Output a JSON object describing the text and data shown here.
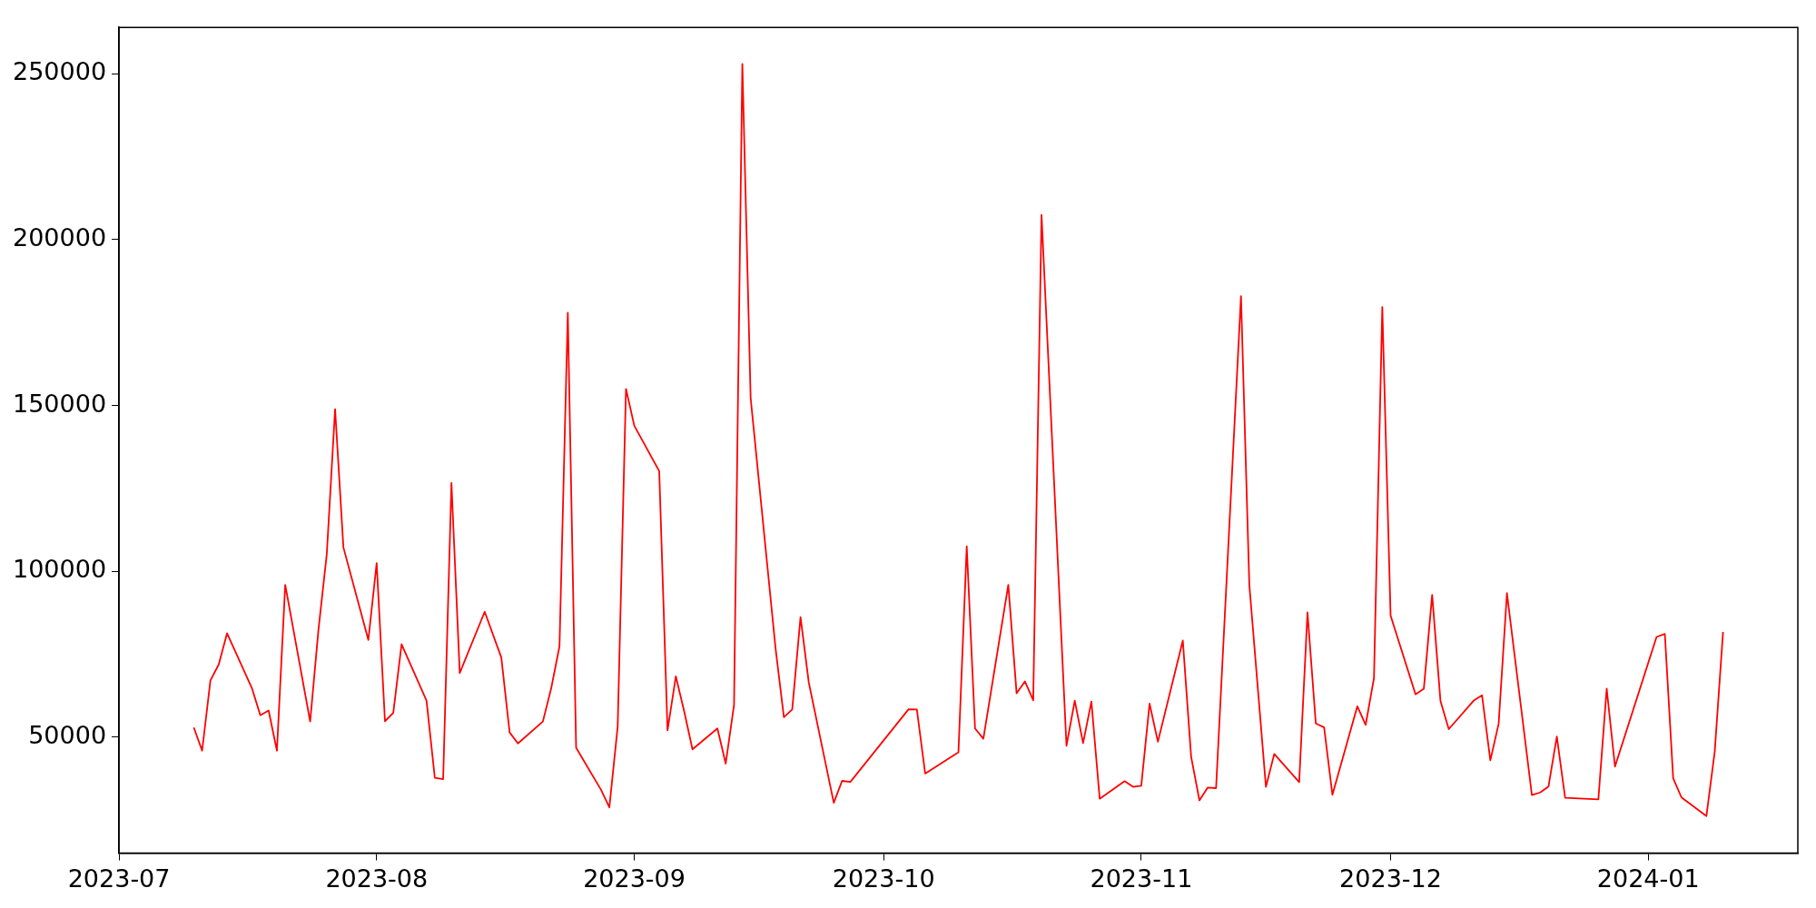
{
  "chart_data": {
    "type": "line",
    "color": "#ff0000",
    "x": [
      "2023-07-10",
      "2023-07-11",
      "2023-07-12",
      "2023-07-13",
      "2023-07-14",
      "2023-07-17",
      "2023-07-18",
      "2023-07-19",
      "2023-07-20",
      "2023-07-21",
      "2023-07-24",
      "2023-07-25",
      "2023-07-26",
      "2023-07-27",
      "2023-07-28",
      "2023-07-31",
      "2023-08-01",
      "2023-08-02",
      "2023-08-03",
      "2023-08-04",
      "2023-08-07",
      "2023-08-08",
      "2023-08-09",
      "2023-08-10",
      "2023-08-11",
      "2023-08-14",
      "2023-08-16",
      "2023-08-17",
      "2023-08-18",
      "2023-08-21",
      "2023-08-22",
      "2023-08-23",
      "2023-08-24",
      "2023-08-25",
      "2023-08-28",
      "2023-08-29",
      "2023-08-30",
      "2023-08-31",
      "2023-09-01",
      "2023-09-04",
      "2023-09-05",
      "2023-09-06",
      "2023-09-07",
      "2023-09-08",
      "2023-09-11",
      "2023-09-12",
      "2023-09-13",
      "2023-09-14",
      "2023-09-15",
      "2023-09-18",
      "2023-09-19",
      "2023-09-20",
      "2023-09-21",
      "2023-09-22",
      "2023-09-25",
      "2023-09-26",
      "2023-09-27",
      "2023-10-04",
      "2023-10-05",
      "2023-10-06",
      "2023-10-10",
      "2023-10-11",
      "2023-10-12",
      "2023-10-13",
      "2023-10-16",
      "2023-10-17",
      "2023-10-18",
      "2023-10-19",
      "2023-10-20",
      "2023-10-23",
      "2023-10-24",
      "2023-10-25",
      "2023-10-26",
      "2023-10-27",
      "2023-10-30",
      "2023-10-31",
      "2023-11-01",
      "2023-11-02",
      "2023-11-03",
      "2023-11-06",
      "2023-11-07",
      "2023-11-08",
      "2023-11-09",
      "2023-11-10",
      "2023-11-13",
      "2023-11-14",
      "2023-11-16",
      "2023-11-17",
      "2023-11-20",
      "2023-11-21",
      "2023-11-22",
      "2023-11-23",
      "2023-11-24",
      "2023-11-27",
      "2023-11-28",
      "2023-11-29",
      "2023-11-30",
      "2023-12-01",
      "2023-12-04",
      "2023-12-05",
      "2023-12-06",
      "2023-12-07",
      "2023-12-08",
      "2023-12-11",
      "2023-12-12",
      "2023-12-13",
      "2023-12-14",
      "2023-12-15",
      "2023-12-18",
      "2023-12-19",
      "2023-12-20",
      "2023-12-21",
      "2023-12-22",
      "2023-12-26",
      "2023-12-27",
      "2023-12-28",
      "2024-01-02",
      "2024-01-03",
      "2024-01-04",
      "2024-01-05",
      "2024-01-08",
      "2024-01-09",
      "2024-01-10"
    ],
    "values": [
      52900,
      45900,
      67100,
      71900,
      81300,
      64700,
      56600,
      58000,
      45900,
      95900,
      54700,
      82400,
      105200,
      148900,
      107200,
      79300,
      102500,
      54800,
      57300,
      78000,
      61000,
      37700,
      37300,
      126600,
      69300,
      87800,
      74000,
      51400,
      48100,
      54700,
      64700,
      77400,
      178000,
      46800,
      34100,
      28800,
      53100,
      155000,
      143900,
      130200,
      52000,
      68300,
      57800,
      46300,
      52600,
      42000,
      59700,
      253000,
      152200,
      76700,
      56000,
      58300,
      86200,
      66400,
      30200,
      36800,
      36500,
      58400,
      58300,
      39000,
      45400,
      107500,
      52600,
      49500,
      95900,
      63200,
      66800,
      61100,
      207500,
      47400,
      61000,
      48200,
      60700,
      31400,
      36700,
      35000,
      35300,
      60100,
      48600,
      79100,
      44100,
      30900,
      34800,
      34600,
      183000,
      96000,
      35000,
      44900,
      36400,
      87600,
      54100,
      52900,
      32600,
      59300,
      53700,
      67800,
      179700,
      86600,
      62900,
      64600,
      92900,
      60900,
      52400,
      61000,
      62600,
      43000,
      54000,
      93400,
      32500,
      33300,
      35100,
      50200,
      31700,
      31200,
      64600,
      41100,
      80200,
      81100,
      37600,
      31800,
      26200,
      45600,
      81700
    ],
    "xlim": [
      "2023-07-01",
      "2024-01-19"
    ],
    "xticks": [
      {
        "value": "2023-07-01",
        "label": "2023-07"
      },
      {
        "value": "2023-08-01",
        "label": "2023-08"
      },
      {
        "value": "2023-09-01",
        "label": "2023-09"
      },
      {
        "value": "2023-10-01",
        "label": "2023-10"
      },
      {
        "value": "2023-11-01",
        "label": "2023-11"
      },
      {
        "value": "2023-12-01",
        "label": "2023-12"
      },
      {
        "value": "2024-01-01",
        "label": "2024-01"
      }
    ],
    "ylim": [
      15000,
      264000
    ],
    "yticks": [
      50000,
      100000,
      150000,
      200000,
      250000
    ]
  }
}
